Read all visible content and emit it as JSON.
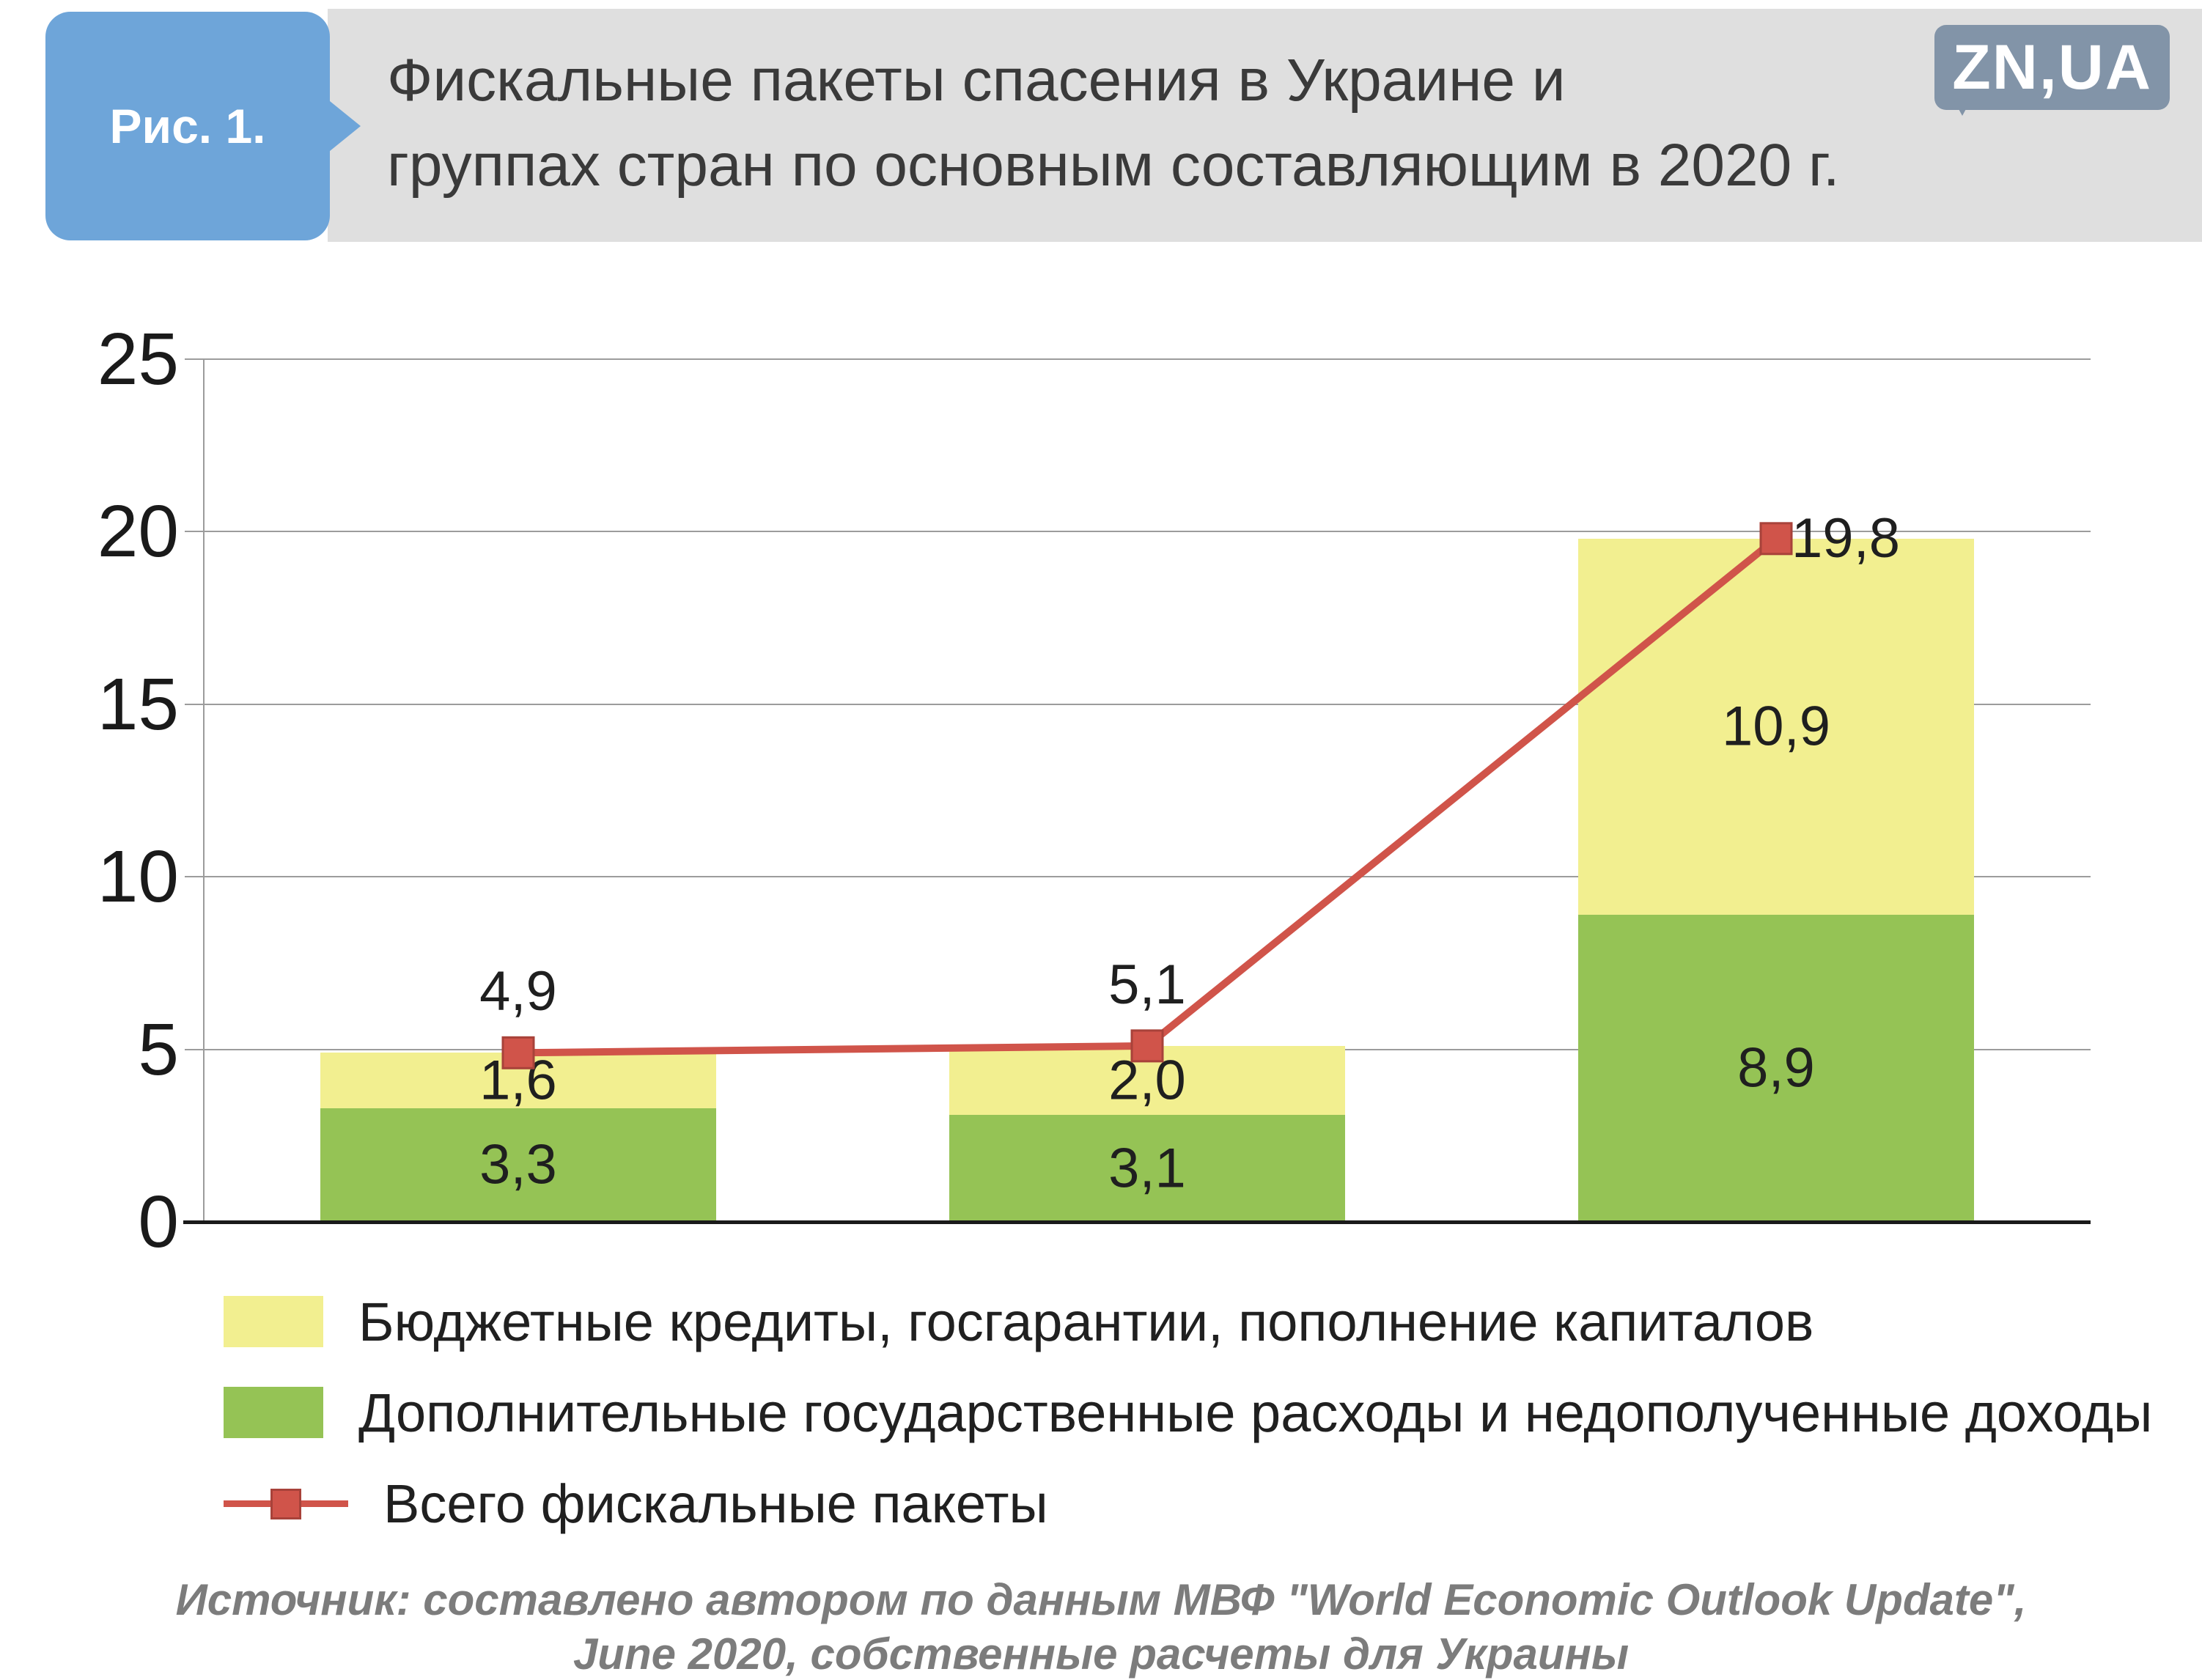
{
  "header": {
    "figure_label": "Рис. 1.",
    "title_line1": "Фискальные пакеты спасения в Украине и",
    "title_line2": "группах стран по основным составляющим в 2020 г.",
    "logo_text": "ZN,UA"
  },
  "source": {
    "line1": "Источник: составлено автором по данным МВФ \"World Economic Outlook Update\",",
    "line2": "June 2020, собственные расчеты для Украины"
  },
  "colors": {
    "yellow": "#f2ef90",
    "green": "#95c355",
    "red": "#d0544a",
    "red_border": "#a8423a",
    "badge_blue": "#6ea5d9",
    "header_gray": "#dfdfdf",
    "logo_blue": "#8294a8",
    "grid": "#9c9c9c",
    "axis": "#1a1a1a"
  },
  "chart_data": {
    "type": "bar",
    "subtype": "stacked-bars-with-total-line",
    "categories": [
      "",
      "",
      ""
    ],
    "series": [
      {
        "name": "Дополнительные государственные расходы и недополученные доходы",
        "color_key": "green",
        "values": [
          3.3,
          3.1,
          8.9
        ],
        "labels": [
          "3,3",
          "3,1",
          "8,9"
        ]
      },
      {
        "name": "Бюджетные кредиты, госгарантии, пополнение капиталов",
        "color_key": "yellow",
        "values": [
          1.6,
          2.0,
          10.9
        ],
        "labels": [
          "1,6",
          "2,0",
          "10,9"
        ]
      }
    ],
    "line_series": {
      "name": "Всего фискальные пакеты",
      "color_key": "red",
      "values": [
        4.9,
        5.1,
        19.8
      ],
      "labels": [
        "4,9",
        "5,1",
        "19,8"
      ]
    },
    "ylim": [
      0,
      25
    ],
    "yticks": [
      0,
      5,
      10,
      15,
      20,
      25
    ],
    "grid": true,
    "legend_position": "bottom"
  }
}
